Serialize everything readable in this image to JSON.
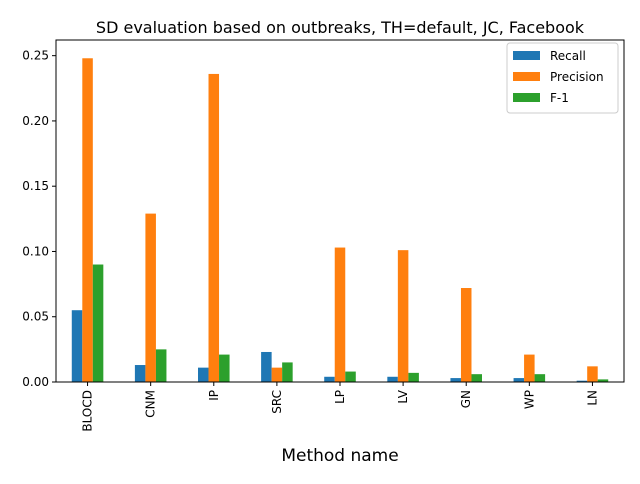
{
  "chart_data": {
    "type": "bar",
    "title": "SD evaluation based on outbreaks, TH=default, JC, Facebook",
    "xlabel": "Method name",
    "ylabel": "",
    "ylim": [
      0,
      0.262
    ],
    "yticks": [
      0.0,
      0.05,
      0.1,
      0.15,
      0.2,
      0.25
    ],
    "ytick_labels": [
      "0.00",
      "0.05",
      "0.10",
      "0.15",
      "0.20",
      "0.25"
    ],
    "grid": false,
    "legend_position": "top-right",
    "categories": [
      "BLOCD",
      "CNM",
      "IP",
      "SRC",
      "LP",
      "LV",
      "GN",
      "WP",
      "LN"
    ],
    "series": [
      {
        "name": "Recall",
        "color": "#1f77b4",
        "values": [
          0.055,
          0.013,
          0.011,
          0.023,
          0.004,
          0.004,
          0.003,
          0.003,
          0.001
        ]
      },
      {
        "name": "Precision",
        "color": "#ff7f0e",
        "values": [
          0.248,
          0.129,
          0.236,
          0.011,
          0.103,
          0.101,
          0.072,
          0.021,
          0.012
        ]
      },
      {
        "name": "F-1",
        "color": "#2ca02c",
        "values": [
          0.09,
          0.025,
          0.021,
          0.015,
          0.008,
          0.007,
          0.006,
          0.006,
          0.002
        ]
      }
    ]
  }
}
